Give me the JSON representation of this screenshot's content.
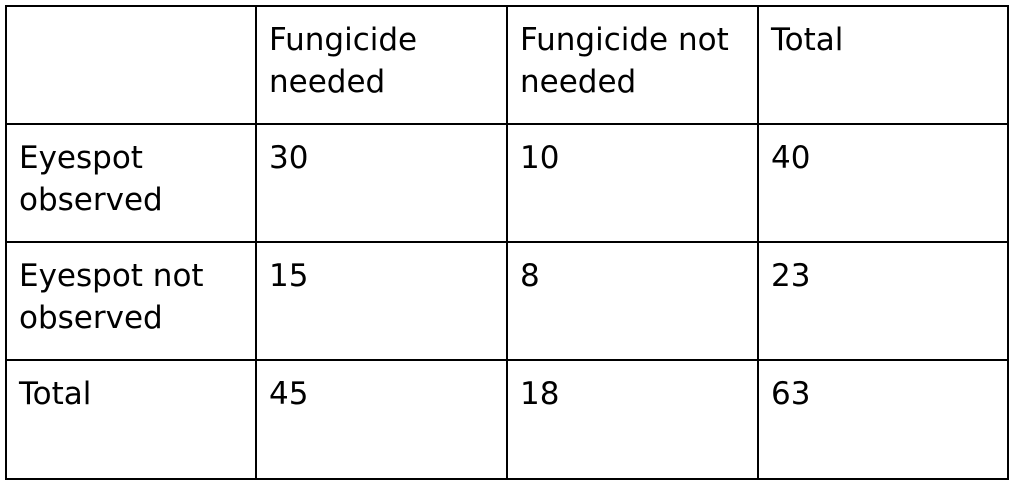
{
  "chart_data": {
    "type": "table",
    "columns": [
      "",
      "Fungicide needed",
      "Fungicide not needed",
      "Total"
    ],
    "rows": [
      [
        "Eyespot observed",
        "30",
        "10",
        "40"
      ],
      [
        "Eyespot not observed",
        "15",
        "8",
        "23"
      ],
      [
        "Total",
        "45",
        "18",
        "63"
      ]
    ]
  }
}
